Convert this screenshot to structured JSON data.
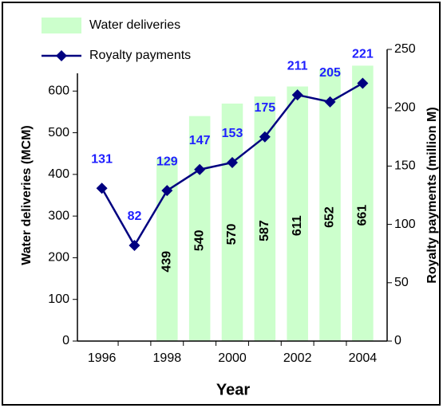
{
  "chart_data": {
    "type": "bar",
    "x_label": "Year",
    "y_label": "Water deliveries (MCM)",
    "y2_label": "Royalty payments (million M)",
    "categories": [
      "1996",
      null,
      "1998",
      null,
      "2000",
      null,
      "2002",
      null,
      "2004"
    ],
    "series": [
      {
        "name": "Water deliveries",
        "type": "bar",
        "color": "#ccffcc",
        "values": [
          null,
          null,
          439,
          540,
          570,
          587,
          611,
          652,
          661
        ]
      },
      {
        "name": "Royalty payments",
        "type": "line",
        "axis": "y2",
        "color": "#000080",
        "label_color": "#1f1fff",
        "values": [
          131,
          82,
          129,
          147,
          153,
          175,
          211,
          205,
          221
        ]
      }
    ],
    "ylim": [
      0,
      700
    ],
    "yticks": [
      0,
      100,
      200,
      300,
      400,
      500,
      600
    ],
    "y2lim": [
      0,
      250
    ],
    "y2ticks": [
      0,
      50,
      100,
      150,
      200,
      250
    ],
    "legend": "top-left"
  }
}
